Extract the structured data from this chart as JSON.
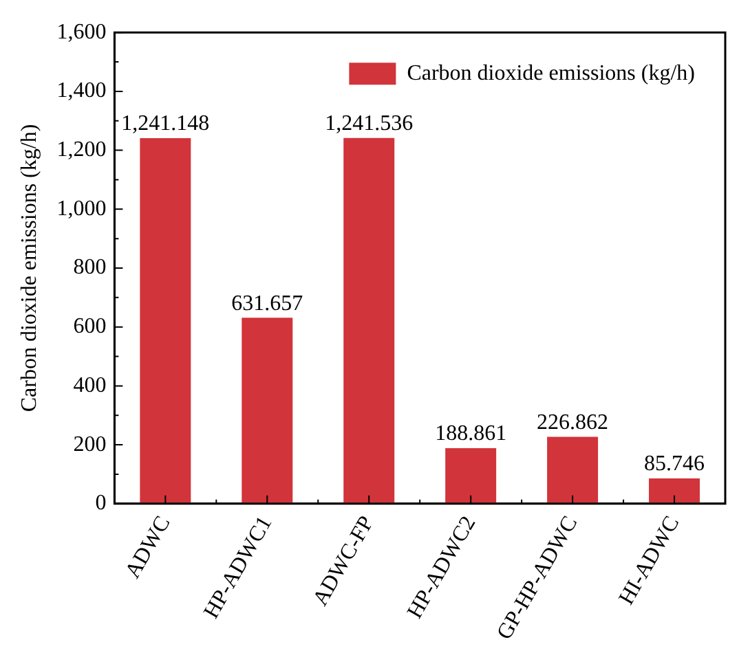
{
  "chart_data": {
    "type": "bar",
    "ylabel": "Carbon dioxide emissions (kg/h)",
    "categories": [
      "ADWC",
      "HP-ADWC1",
      "ADWC-FP",
      "HP-ADWC2",
      "GP-HP-ADWC",
      "HI-ADWC"
    ],
    "series": [
      {
        "name": "Carbon dioxide emissions (kg/h)",
        "color": "#d1343a",
        "values": [
          1241.148,
          631.657,
          1241.536,
          188.861,
          226.862,
          85.746
        ],
        "value_labels": [
          "1,241.148",
          "631.657",
          "1,241.536",
          "188.861",
          "226.862",
          "85.746"
        ]
      }
    ],
    "ylim": [
      0,
      1600
    ],
    "yticks": [
      {
        "value": 0,
        "label": "0"
      },
      {
        "value": 200,
        "label": "200"
      },
      {
        "value": 400,
        "label": "400"
      },
      {
        "value": 600,
        "label": "600"
      },
      {
        "value": 800,
        "label": "800"
      },
      {
        "value": 1000,
        "label": "1,000"
      },
      {
        "value": 1200,
        "label": "1,200"
      },
      {
        "value": 1400,
        "label": "1,400"
      },
      {
        "value": 1600,
        "label": "1,600"
      }
    ],
    "legend": "top right"
  }
}
